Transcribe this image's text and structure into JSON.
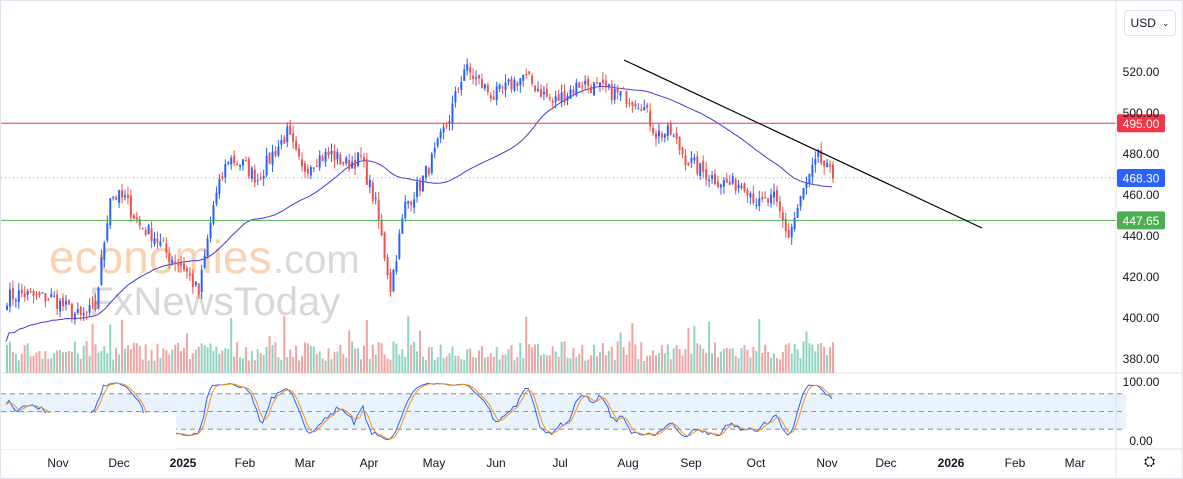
{
  "currency_selector": {
    "label": "USD",
    "icon": "chevron-down-icon"
  },
  "watermark": {
    "line1_main": "economies",
    "line1_suffix": ".com",
    "line2": "FxNewsToday"
  },
  "chart_data": {
    "type": "candlestick",
    "start_date": "2024-10-07",
    "interval": "weekly-resampled",
    "closes": [
      410,
      412,
      410,
      410,
      405,
      400,
      405,
      460,
      458,
      445,
      440,
      430,
      425,
      412,
      455,
      478,
      475,
      468,
      480,
      490,
      472,
      478,
      480,
      475,
      478,
      455,
      415,
      455,
      465,
      480,
      498,
      522,
      515,
      508,
      513,
      518,
      512,
      505,
      510,
      515,
      512,
      510,
      508,
      505,
      490,
      490,
      478,
      472,
      468,
      465,
      466,
      455,
      458,
      440,
      462,
      478,
      468
    ],
    "y_axis": {
      "ticks": [
        "520.00",
        "500.00",
        "480.00",
        "460.00",
        "440.00",
        "420.00",
        "400.00",
        "380.00"
      ],
      "range": [
        380,
        530
      ]
    },
    "x_axis": {
      "ticks": [
        "Nov",
        "Dec",
        "2025",
        "Feb",
        "Mar",
        "Apr",
        "May",
        "Jun",
        "Jul",
        "Aug",
        "Sep",
        "Oct",
        "Nov",
        "Dec",
        "2026",
        "Feb",
        "Mar"
      ]
    },
    "levels": [
      {
        "value": 495.0,
        "label": "495.00",
        "color": "#f23645",
        "style": "solid"
      },
      {
        "value": 468.3,
        "label": "468.30",
        "color": "#2962ff",
        "style": "dotted",
        "line_color": "#f7931a"
      },
      {
        "value": 447.65,
        "label": "447.65",
        "color": "#4caf50",
        "style": "solid"
      }
    ],
    "trendline": {
      "from": {
        "date": "2025-07-31",
        "price": 526
      },
      "to": {
        "date": "2025-12-15",
        "price": 444
      },
      "color": "#000000"
    },
    "moving_average": {
      "color": "#3f3fd6"
    },
    "colors": {
      "up": "#2962ff",
      "down": "#ef5350",
      "vol_up": "#8fd3c2",
      "vol_down": "#f0a5a5"
    },
    "oscillator": {
      "type": "stochastic",
      "ticks": [
        "100.00",
        "0.00"
      ],
      "bands": [
        80,
        20
      ],
      "k_color": "#2962ff",
      "d_color": "#f7931a",
      "band_fill": "#e8f3fd"
    }
  }
}
